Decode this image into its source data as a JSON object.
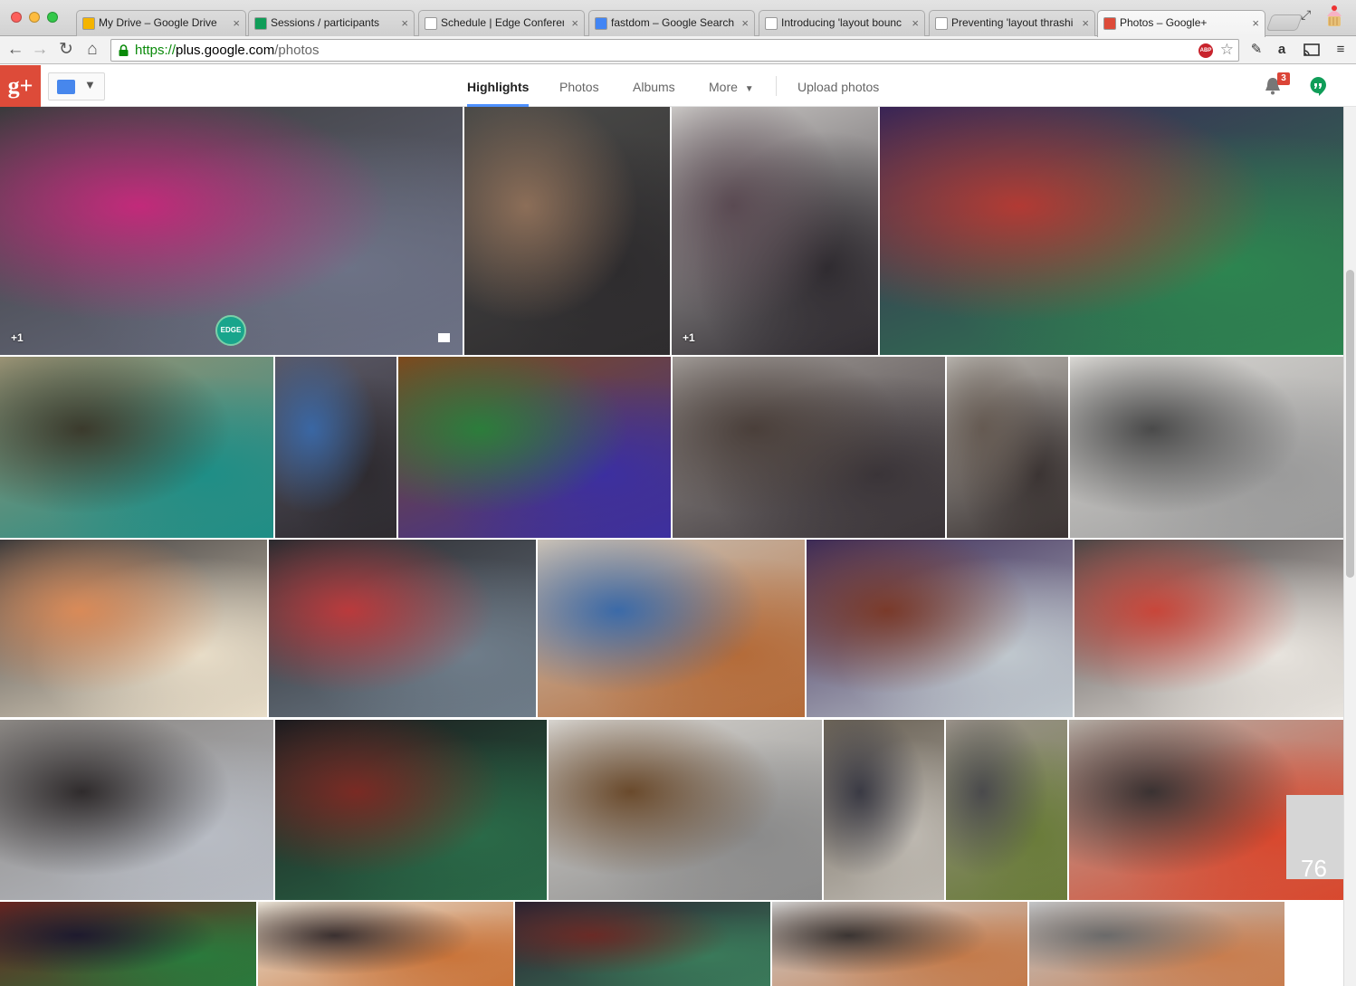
{
  "browser": {
    "tabs": [
      {
        "title": "My Drive – Google Drive",
        "favicon_color": "#f4b400"
      },
      {
        "title": "Sessions / participants",
        "favicon_color": "#0f9d58"
      },
      {
        "title": "Schedule | Edge Conferen",
        "favicon_color": "#ffffff"
      },
      {
        "title": "fastdom – Google Search",
        "favicon_color": "#4285f4"
      },
      {
        "title": "Introducing 'layout bounc",
        "favicon_color": "#ffffff"
      },
      {
        "title": "Preventing 'layout thrashi",
        "favicon_color": "#ffffff"
      },
      {
        "title": "Photos – Google+",
        "favicon_color": "#dd4b39"
      }
    ],
    "active_tab_index": 6,
    "url": {
      "scheme": "https://",
      "host": "plus.google.com",
      "path": "/photos"
    },
    "adblock_label": "ABP",
    "close_glyph": "×"
  },
  "gplus": {
    "logo": "g+",
    "nav": [
      {
        "label": "Highlights",
        "active": true
      },
      {
        "label": "Photos",
        "active": false
      },
      {
        "label": "Albums",
        "active": false
      },
      {
        "label": "More",
        "active": false
      }
    ],
    "upload_label": "Upload photos",
    "notification_count": "3"
  },
  "photos": {
    "overlay_plus_one": "+1",
    "edge_badge_text": "EDGE",
    "more_count": "76",
    "items": [
      {
        "desc": "audience-laptop",
        "colors": [
          "#3b3a3c",
          "#c22a7a",
          "#6d7286"
        ]
      },
      {
        "desc": "audience-row",
        "colors": [
          "#4a4a48",
          "#8c6e58",
          "#2e2c2e"
        ]
      },
      {
        "desc": "photographer",
        "colors": [
          "#c9c6c4",
          "#5a4a52",
          "#2f2b30"
        ]
      },
      {
        "desc": "panel-stage",
        "colors": [
          "#3a2455",
          "#b23a34",
          "#2d8550"
        ]
      },
      {
        "desc": "auditorium-wide",
        "colors": [
          "#9a9274",
          "#3b3a2c",
          "#1e8e86"
        ]
      },
      {
        "desc": "attendee-plaid",
        "colors": [
          "#5b5966",
          "#3a67a4",
          "#2e2b30"
        ]
      },
      {
        "desc": "question-mic",
        "colors": [
          "#7d4a1c",
          "#2c7d3b",
          "#3c2fa0"
        ]
      },
      {
        "desc": "audience-crowd",
        "colors": [
          "#a09a96",
          "#4a3f3a",
          "#3a3438"
        ]
      },
      {
        "desc": "attendee-glasses",
        "colors": [
          "#b6b2ac",
          "#655a52",
          "#3b3433"
        ]
      },
      {
        "desc": "lunch-chat",
        "colors": [
          "#d8d6d2",
          "#4a4a4a",
          "#9a9a9a"
        ]
      },
      {
        "desc": "speaker-redhead",
        "colors": [
          "#3d3a3a",
          "#d98a58",
          "#e8ddc8"
        ]
      },
      {
        "desc": "room-standing",
        "colors": [
          "#2b2a2e",
          "#ba3a3c",
          "#6f7d8a"
        ]
      },
      {
        "desc": "smiling-cap",
        "colors": [
          "#c9c2b8",
          "#3b6aa8",
          "#b46b39"
        ]
      },
      {
        "desc": "stage-duo",
        "colors": [
          "#3c2a56",
          "#7a3a2a",
          "#c0c8ce"
        ]
      },
      {
        "desc": "audience-listening",
        "colors": [
          "#4a4444",
          "#c8463a",
          "#e8e4de"
        ]
      },
      {
        "desc": "audience-front",
        "colors": [
          "#8a8682",
          "#2f2b2c",
          "#b8bcc4"
        ]
      },
      {
        "desc": "panel-wide",
        "colors": [
          "#1c1a1e",
          "#7a2a24",
          "#2a6a48"
        ]
      },
      {
        "desc": "conversation",
        "colors": [
          "#d6d3ce",
          "#6a4a2c",
          "#8a8a8a"
        ]
      },
      {
        "desc": "attendee-profile",
        "colors": [
          "#6a6256",
          "#3a3a44",
          "#bdb8b0"
        ]
      },
      {
        "desc": "bald-glasses",
        "colors": [
          "#9a928a",
          "#4a4a4c",
          "#6a7c3a"
        ]
      },
      {
        "desc": "hallway-talk",
        "colors": [
          "#b4aea6",
          "#3a3232",
          "#d8482e"
        ]
      },
      {
        "desc": "speaker-intro",
        "colors": [
          "#6a2420",
          "#1e1a2e",
          "#2a7a3c"
        ]
      },
      {
        "desc": "laptop-redhead",
        "colors": [
          "#e8e2d6",
          "#3a3030",
          "#c9743a"
        ]
      },
      {
        "desc": "stage-far",
        "colors": [
          "#2a2030",
          "#6a2a26",
          "#3a7a5a"
        ]
      },
      {
        "desc": "ginger-smile",
        "colors": [
          "#cfcfcf",
          "#3a3432",
          "#c37a4a"
        ]
      },
      {
        "desc": "ginger-closeup",
        "colors": [
          "#c2c4c6",
          "#6a6a6a",
          "#c87d4e"
        ]
      }
    ]
  }
}
